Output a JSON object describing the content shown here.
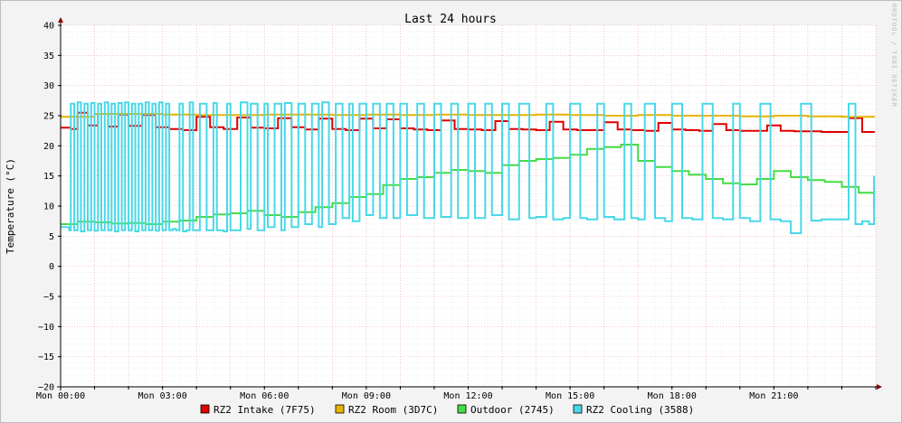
{
  "chart_data": {
    "type": "line",
    "title": "Last 24 hours",
    "ylabel": "Temperature (°C)",
    "watermark": "RRDTOOL / TOBI OETIKER",
    "ylim": [
      -20,
      40
    ],
    "y_ticks": [
      40,
      35,
      30,
      25,
      20,
      15,
      10,
      5,
      0,
      -5,
      -10,
      -15,
      -20
    ],
    "y_tick_labels": [
      "40",
      "35",
      "30",
      "25",
      "20",
      "15",
      "10",
      "5",
      "0",
      "−5",
      "−10",
      "−15",
      "−20"
    ],
    "xlim": [
      0,
      24
    ],
    "x_ticks": [
      0,
      3,
      6,
      9,
      12,
      15,
      18,
      21
    ],
    "x_tick_labels": [
      "Mon 00:00",
      "Mon 03:00",
      "Mon 06:00",
      "Mon 09:00",
      "Mon 12:00",
      "Mon 15:00",
      "Mon 18:00",
      "Mon 21:00"
    ],
    "grid": true,
    "legend_position": "bottom",
    "series": [
      {
        "name": "RZ2 Intake (7F75)",
        "color": "#e00000",
        "x": [
          0,
          0.3,
          0.5,
          0.8,
          1.1,
          1.4,
          1.7,
          2,
          2.4,
          2.8,
          3.2,
          3.6,
          4,
          4.4,
          4.8,
          5.2,
          5.6,
          6,
          6.4,
          6.8,
          7.2,
          7.6,
          8,
          8.4,
          8.8,
          9.2,
          9.6,
          10,
          10.4,
          10.8,
          11.2,
          11.6,
          12,
          12.4,
          12.8,
          13.2,
          13.6,
          14,
          14.4,
          14.8,
          15.2,
          15.6,
          16,
          16.4,
          16.8,
          17.2,
          17.6,
          18,
          18.4,
          18.8,
          19.2,
          19.6,
          20,
          20.4,
          20.8,
          21.2,
          21.6,
          22,
          22.4,
          22.8,
          23.2,
          23.6,
          23.95
        ],
        "values": [
          23,
          22.8,
          25.5,
          23.4,
          25.3,
          23.2,
          25.2,
          23.3,
          25.1,
          23.1,
          22.8,
          22.6,
          24.8,
          23.1,
          22.8,
          24.7,
          23.0,
          22.9,
          24.6,
          23.1,
          22.7,
          24.5,
          22.8,
          22.6,
          24.5,
          22.9,
          24.4,
          22.9,
          22.7,
          22.6,
          24.2,
          22.8,
          22.7,
          22.6,
          24.1,
          22.8,
          22.7,
          22.6,
          24.0,
          22.7,
          22.6,
          22.6,
          23.9,
          22.7,
          22.6,
          22.5,
          23.8,
          22.7,
          22.6,
          22.5,
          23.6,
          22.6,
          22.5,
          22.5,
          23.4,
          22.5,
          22.4,
          22.4,
          22.3,
          22.3,
          24.6,
          22.3,
          22.2
        ]
      },
      {
        "name": "RZ2 Room (3D7C)",
        "color": "#e8b400",
        "x": [
          0,
          1,
          2,
          3,
          4,
          5,
          6,
          7,
          8,
          9,
          10,
          11,
          12,
          13,
          14,
          15,
          16,
          17,
          18,
          19,
          20,
          21,
          22,
          23,
          23.95
        ],
        "values": [
          24.8,
          25.3,
          25.3,
          25.2,
          25.1,
          25.1,
          25.2,
          25.2,
          25.1,
          25.2,
          25.1,
          25.2,
          25.1,
          25.1,
          25.2,
          25.1,
          25.0,
          25.1,
          25.0,
          25.0,
          24.9,
          25.0,
          24.9,
          24.8,
          24.7
        ]
      },
      {
        "name": "Outdoor (2745)",
        "color": "#44dd44",
        "x": [
          0,
          0.5,
          1,
          1.5,
          2,
          2.5,
          3,
          3.5,
          4,
          4.5,
          5,
          5.5,
          6,
          6.5,
          7,
          7.5,
          8,
          8.5,
          9,
          9.5,
          10,
          10.5,
          11,
          11.5,
          12,
          12.5,
          13,
          13.5,
          14,
          14.5,
          15,
          15.5,
          16,
          16.5,
          17,
          17.5,
          18,
          18.5,
          19,
          19.5,
          20,
          20.5,
          21,
          21.5,
          22,
          22.5,
          23,
          23.5,
          23.95
        ],
        "values": [
          7.0,
          7.4,
          7.3,
          7.1,
          7.2,
          7.0,
          7.4,
          7.6,
          8.2,
          8.6,
          8.8,
          9.2,
          8.5,
          8.2,
          9.0,
          9.8,
          10.5,
          11.5,
          12.0,
          13.5,
          14.5,
          14.8,
          15.5,
          16.0,
          15.8,
          15.5,
          16.8,
          17.5,
          17.8,
          18.0,
          18.5,
          19.5,
          19.8,
          20.2,
          17.5,
          16.5,
          15.8,
          15.2,
          14.5,
          13.8,
          13.6,
          14.5,
          15.8,
          14.8,
          14.3,
          14.0,
          13.2,
          12.2,
          10.2
        ]
      },
      {
        "name": "RZ2 Cooling (3588)",
        "color": "#48d8e8",
        "x": [
          0,
          0.25,
          0.3,
          0.4,
          0.5,
          0.6,
          0.7,
          0.8,
          0.9,
          1.0,
          1.1,
          1.2,
          1.3,
          1.4,
          1.5,
          1.6,
          1.7,
          1.8,
          1.9,
          2.0,
          2.1,
          2.2,
          2.3,
          2.4,
          2.5,
          2.6,
          2.7,
          2.8,
          2.9,
          3.0,
          3.1,
          3.2,
          3.3,
          3.4,
          3.5,
          3.6,
          3.7,
          3.8,
          3.9,
          4.0,
          4.1,
          4.3,
          4.5,
          4.6,
          4.8,
          4.9,
          5.0,
          5.1,
          5.3,
          5.5,
          5.6,
          5.8,
          6.0,
          6.1,
          6.3,
          6.5,
          6.6,
          6.8,
          7.0,
          7.2,
          7.4,
          7.6,
          7.7,
          7.9,
          8.1,
          8.3,
          8.5,
          8.6,
          8.8,
          9.0,
          9.2,
          9.4,
          9.6,
          9.8,
          10.0,
          10.2,
          10.5,
          10.7,
          11.0,
          11.2,
          11.5,
          11.7,
          12.0,
          12.2,
          12.5,
          12.7,
          13.0,
          13.2,
          13.5,
          13.8,
          14.0,
          14.3,
          14.5,
          14.8,
          15.0,
          15.3,
          15.5,
          15.8,
          16.0,
          16.3,
          16.6,
          16.8,
          17.0,
          17.2,
          17.5,
          17.8,
          18.0,
          18.3,
          18.6,
          18.9,
          19.2,
          19.5,
          19.8,
          20.0,
          20.3,
          20.6,
          20.9,
          21.2,
          21.5,
          21.8,
          22.1,
          22.4,
          22.7,
          23.0,
          23.2,
          23.4,
          23.6,
          23.8,
          23.95
        ],
        "values": [
          6.5,
          6.0,
          27.0,
          6.0,
          27.2,
          5.8,
          27.0,
          6.0,
          27.1,
          5.9,
          27.0,
          6.0,
          27.2,
          6.0,
          27.0,
          5.8,
          27.1,
          6.0,
          27.2,
          6.0,
          27.0,
          5.8,
          27.0,
          6.0,
          27.2,
          6.0,
          27.0,
          5.9,
          27.2,
          6.0,
          27.0,
          6.0,
          6.2,
          6.0,
          27.0,
          5.8,
          6.0,
          27.2,
          6.0,
          6.0,
          27.0,
          6.0,
          27.1,
          6.0,
          5.8,
          27.0,
          6.0,
          6.0,
          27.2,
          6.2,
          27.0,
          6.0,
          27.0,
          6.5,
          27.0,
          6.0,
          27.1,
          6.5,
          27.0,
          7.0,
          27.0,
          6.5,
          27.2,
          7.0,
          27.0,
          8.0,
          27.0,
          7.5,
          27.0,
          8.5,
          27.0,
          8.0,
          27.0,
          8.0,
          27.0,
          8.5,
          27.0,
          8.0,
          27.0,
          8.2,
          27.0,
          8.0,
          27.0,
          8.0,
          27.0,
          8.5,
          27.0,
          7.8,
          27.0,
          8.0,
          8.2,
          27.0,
          7.8,
          8.0,
          27.0,
          8.0,
          7.8,
          27.0,
          8.2,
          7.8,
          27.0,
          8.0,
          7.8,
          27.0,
          8.0,
          7.5,
          27.0,
          8.0,
          7.8,
          27.0,
          8.0,
          7.8,
          27.0,
          8.0,
          7.5,
          27.0,
          7.8,
          7.5,
          5.5,
          27.0,
          7.6,
          7.8,
          7.8,
          7.8,
          27.0,
          7.0,
          7.5,
          7.0,
          15.0
        ]
      }
    ]
  }
}
